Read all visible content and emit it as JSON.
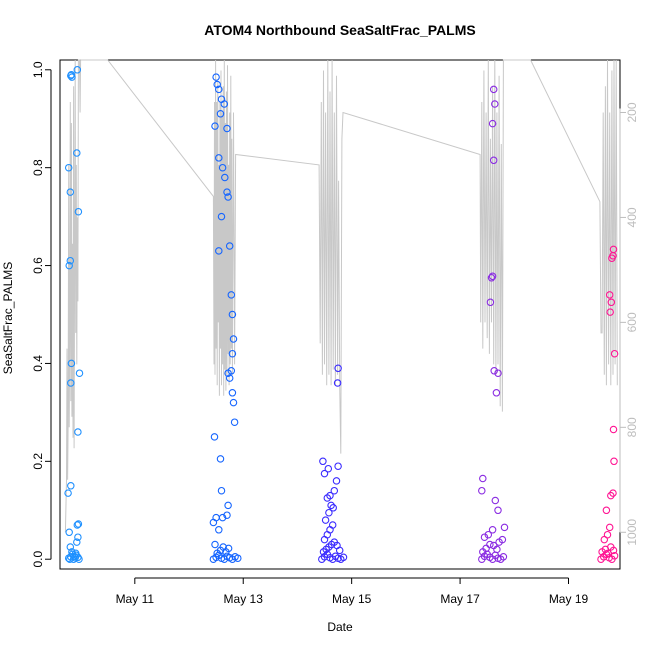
{
  "chart_data": {
    "type": "scatter",
    "title": "ATOM4 Northbound SeaSaltFrac_PALMS",
    "xlabel": "Date",
    "ylabel": "SeaSaltFrac_PALMS",
    "xlim_days": [
      9.62,
      19.95
    ],
    "ylim": [
      -0.02,
      1.02
    ],
    "yticks": [
      0.0,
      0.2,
      0.4,
      0.6,
      0.8,
      1.0
    ],
    "ytick_labels": [
      "0.0",
      "0.2",
      "0.4",
      "0.6",
      "0.8",
      "1.0"
    ],
    "xticks": [
      11,
      13,
      15,
      17,
      19
    ],
    "xtick_labels": [
      "May 11",
      "May 13",
      "May 15",
      "May 17",
      "May 19"
    ],
    "y2_axis": {
      "reversed": true,
      "lim": [
        1070,
        100
      ],
      "ticks": [
        200,
        400,
        600,
        800,
        1000
      ],
      "tick_labels": [
        "200",
        "400",
        "600",
        "800",
        "1000"
      ],
      "color": "#bdbdbd"
    },
    "grid": false,
    "series": [
      {
        "color": "#1e90ff",
        "points": [
          [
            9.8,
            0.0
          ],
          [
            9.82,
            0.005
          ],
          [
            9.85,
            0.01
          ],
          [
            9.87,
            0.0
          ],
          [
            9.9,
            0.003
          ],
          [
            9.92,
            0.008
          ],
          [
            9.78,
            0.002
          ],
          [
            9.84,
            0.015
          ],
          [
            9.88,
            0.006
          ],
          [
            9.95,
            0.004
          ],
          [
            9.97,
            0.0
          ],
          [
            9.81,
            0.025
          ],
          [
            9.79,
            0.055
          ],
          [
            9.77,
            0.135
          ],
          [
            9.82,
            0.15
          ],
          [
            9.94,
            0.07
          ],
          [
            9.96,
            0.072
          ],
          [
            9.93,
            0.035
          ],
          [
            9.95,
            0.045
          ],
          [
            9.91,
            0.012
          ],
          [
            9.83,
            0.99
          ],
          [
            9.84,
            0.985
          ],
          [
            9.82,
            0.988
          ],
          [
            9.94,
            1.0
          ],
          [
            9.93,
            0.83
          ],
          [
            9.78,
            0.8
          ],
          [
            9.81,
            0.75
          ],
          [
            9.96,
            0.71
          ],
          [
            9.81,
            0.61
          ],
          [
            9.79,
            0.6
          ],
          [
            9.83,
            0.4
          ],
          [
            9.98,
            0.38
          ],
          [
            9.82,
            0.36
          ],
          [
            9.95,
            0.26
          ]
        ]
      },
      {
        "color": "#1565ff",
        "points": [
          [
            12.45,
            0.0
          ],
          [
            12.5,
            0.004
          ],
          [
            12.55,
            0.008
          ],
          [
            12.6,
            0.002
          ],
          [
            12.65,
            0.0
          ],
          [
            12.7,
            0.006
          ],
          [
            12.75,
            0.003
          ],
          [
            12.8,
            0.0
          ],
          [
            12.85,
            0.005
          ],
          [
            12.9,
            0.002
          ],
          [
            12.52,
            0.012
          ],
          [
            12.58,
            0.018
          ],
          [
            12.63,
            0.025
          ],
          [
            12.68,
            0.015
          ],
          [
            12.73,
            0.022
          ],
          [
            12.48,
            0.03
          ],
          [
            12.55,
            0.06
          ],
          [
            12.62,
            0.085
          ],
          [
            12.7,
            0.09
          ],
          [
            12.45,
            0.075
          ],
          [
            12.5,
            0.085
          ],
          [
            12.6,
            0.14
          ],
          [
            12.58,
            0.205
          ],
          [
            12.47,
            0.25
          ],
          [
            12.72,
            0.11
          ],
          [
            12.5,
            0.985
          ],
          [
            12.52,
            0.97
          ],
          [
            12.55,
            0.96
          ],
          [
            12.6,
            0.94
          ],
          [
            12.65,
            0.93
          ],
          [
            12.58,
            0.91
          ],
          [
            12.7,
            0.88
          ],
          [
            12.48,
            0.885
          ],
          [
            12.55,
            0.82
          ],
          [
            12.62,
            0.8
          ],
          [
            12.66,
            0.78
          ],
          [
            12.7,
            0.75
          ],
          [
            12.72,
            0.74
          ],
          [
            12.6,
            0.7
          ],
          [
            12.75,
            0.64
          ],
          [
            12.55,
            0.63
          ],
          [
            12.78,
            0.54
          ],
          [
            12.8,
            0.5
          ],
          [
            12.82,
            0.45
          ],
          [
            12.8,
            0.42
          ],
          [
            12.78,
            0.385
          ],
          [
            12.72,
            0.38
          ],
          [
            12.75,
            0.37
          ],
          [
            12.8,
            0.34
          ],
          [
            12.82,
            0.32
          ],
          [
            12.84,
            0.28
          ]
        ]
      },
      {
        "color": "#3a2bff",
        "points": [
          [
            14.45,
            0.0
          ],
          [
            14.5,
            0.005
          ],
          [
            14.55,
            0.01
          ],
          [
            14.6,
            0.003
          ],
          [
            14.65,
            0.0
          ],
          [
            14.7,
            0.006
          ],
          [
            14.75,
            0.002
          ],
          [
            14.8,
            0.0
          ],
          [
            14.85,
            0.004
          ],
          [
            14.48,
            0.015
          ],
          [
            14.53,
            0.02
          ],
          [
            14.58,
            0.025
          ],
          [
            14.63,
            0.03
          ],
          [
            14.68,
            0.035
          ],
          [
            14.73,
            0.028
          ],
          [
            14.78,
            0.018
          ],
          [
            14.5,
            0.04
          ],
          [
            14.55,
            0.05
          ],
          [
            14.6,
            0.06
          ],
          [
            14.65,
            0.07
          ],
          [
            14.52,
            0.08
          ],
          [
            14.58,
            0.095
          ],
          [
            14.62,
            0.11
          ],
          [
            14.55,
            0.125
          ],
          [
            14.6,
            0.13
          ],
          [
            14.68,
            0.14
          ],
          [
            14.72,
            0.16
          ],
          [
            14.5,
            0.175
          ],
          [
            14.57,
            0.185
          ],
          [
            14.75,
            0.19
          ],
          [
            14.47,
            0.2
          ],
          [
            14.66,
            0.105
          ],
          [
            14.75,
            0.39
          ],
          [
            14.74,
            0.36
          ]
        ]
      },
      {
        "color": "#8a2be2",
        "points": [
          [
            17.4,
            0.0
          ],
          [
            17.45,
            0.006
          ],
          [
            17.5,
            0.01
          ],
          [
            17.55,
            0.004
          ],
          [
            17.6,
            0.0
          ],
          [
            17.65,
            0.008
          ],
          [
            17.7,
            0.002
          ],
          [
            17.75,
            0.0
          ],
          [
            17.8,
            0.005
          ],
          [
            17.42,
            0.015
          ],
          [
            17.48,
            0.022
          ],
          [
            17.55,
            0.03
          ],
          [
            17.62,
            0.028
          ],
          [
            17.68,
            0.02
          ],
          [
            17.72,
            0.035
          ],
          [
            17.45,
            0.045
          ],
          [
            17.52,
            0.05
          ],
          [
            17.6,
            0.06
          ],
          [
            17.78,
            0.04
          ],
          [
            17.82,
            0.065
          ],
          [
            17.4,
            0.14
          ],
          [
            17.42,
            0.165
          ],
          [
            17.65,
            0.12
          ],
          [
            17.7,
            0.1
          ],
          [
            17.62,
            0.96
          ],
          [
            17.64,
            0.93
          ],
          [
            17.6,
            0.89
          ],
          [
            17.62,
            0.815
          ],
          [
            17.58,
            0.575
          ],
          [
            17.6,
            0.578
          ],
          [
            17.56,
            0.525
          ],
          [
            17.63,
            0.385
          ],
          [
            17.7,
            0.38
          ],
          [
            17.67,
            0.34
          ]
        ]
      },
      {
        "color": "#ff1493",
        "points": [
          [
            19.6,
            0.0
          ],
          [
            19.65,
            0.005
          ],
          [
            19.7,
            0.01
          ],
          [
            19.75,
            0.003
          ],
          [
            19.8,
            0.0
          ],
          [
            19.85,
            0.007
          ],
          [
            19.62,
            0.015
          ],
          [
            19.68,
            0.02
          ],
          [
            19.73,
            0.012
          ],
          [
            19.78,
            0.025
          ],
          [
            19.83,
            0.018
          ],
          [
            19.66,
            0.04
          ],
          [
            19.72,
            0.05
          ],
          [
            19.76,
            0.065
          ],
          [
            19.7,
            0.1
          ],
          [
            19.78,
            0.13
          ],
          [
            19.82,
            0.135
          ],
          [
            19.84,
            0.2
          ],
          [
            19.83,
            0.265
          ],
          [
            19.85,
            0.42
          ],
          [
            19.76,
            0.54
          ],
          [
            19.77,
            0.505
          ],
          [
            19.79,
            0.525
          ],
          [
            19.8,
            0.615
          ],
          [
            19.82,
            0.62
          ],
          [
            19.83,
            0.633
          ]
        ]
      }
    ],
    "pressure_line": [
      [
        9.72,
        1000
      ],
      [
        9.74,
        900
      ],
      [
        9.75,
        650
      ],
      [
        9.76,
        900
      ],
      [
        9.77,
        800
      ],
      [
        9.78,
        300
      ],
      [
        9.79,
        800
      ],
      [
        9.8,
        600
      ],
      [
        9.81,
        180
      ],
      [
        9.82,
        750
      ],
      [
        9.83,
        220
      ],
      [
        9.84,
        780
      ],
      [
        9.85,
        450
      ],
      [
        9.86,
        820
      ],
      [
        9.87,
        150
      ],
      [
        9.88,
        840
      ],
      [
        9.89,
        500
      ],
      [
        9.9,
        100
      ],
      [
        9.91,
        620
      ],
      [
        9.92,
        300
      ],
      [
        9.93,
        680
      ],
      [
        9.94,
        400
      ],
      [
        9.95,
        560
      ],
      [
        9.96,
        100
      ],
      [
        9.98,
        100
      ],
      [
        9.99,
        200
      ],
      [
        10.0,
        100
      ],
      [
        10.5,
        100
      ],
      [
        12.45,
        360
      ],
      [
        12.46,
        680
      ],
      [
        12.47,
        180
      ],
      [
        12.48,
        700
      ],
      [
        12.49,
        100
      ],
      [
        12.5,
        650
      ],
      [
        12.51,
        180
      ],
      [
        12.52,
        720
      ],
      [
        12.53,
        140
      ],
      [
        12.54,
        600
      ],
      [
        12.55,
        300
      ],
      [
        12.56,
        740
      ],
      [
        12.57,
        180
      ],
      [
        12.58,
        650
      ],
      [
        12.59,
        120
      ],
      [
        12.6,
        720
      ],
      [
        12.61,
        200
      ],
      [
        12.62,
        680
      ],
      [
        12.63,
        150
      ],
      [
        12.64,
        740
      ],
      [
        12.65,
        100
      ],
      [
        12.66,
        690
      ],
      [
        12.67,
        220
      ],
      [
        12.68,
        730
      ],
      [
        12.69,
        160
      ],
      [
        12.7,
        700
      ],
      [
        12.71,
        110
      ],
      [
        12.72,
        660
      ],
      [
        12.73,
        300
      ],
      [
        12.74,
        720
      ],
      [
        12.75,
        200
      ],
      [
        12.76,
        680
      ],
      [
        12.77,
        130
      ],
      [
        12.78,
        650
      ],
      [
        12.79,
        250
      ],
      [
        12.8,
        700
      ],
      [
        12.82,
        200
      ],
      [
        12.84,
        680
      ],
      [
        12.86,
        280
      ],
      [
        14.4,
        300
      ],
      [
        14.42,
        640
      ],
      [
        14.44,
        180
      ],
      [
        14.46,
        700
      ],
      [
        14.48,
        120
      ],
      [
        14.5,
        680
      ],
      [
        14.52,
        200
      ],
      [
        14.54,
        720
      ],
      [
        14.56,
        100
      ],
      [
        14.58,
        700
      ],
      [
        14.6,
        160
      ],
      [
        14.62,
        720
      ],
      [
        14.64,
        100
      ],
      [
        14.66,
        690
      ],
      [
        14.68,
        200
      ],
      [
        14.7,
        720
      ],
      [
        14.72,
        130
      ],
      [
        14.74,
        700
      ],
      [
        14.76,
        330
      ],
      [
        14.78,
        720
      ],
      [
        14.8,
        850
      ],
      [
        14.82,
        250
      ],
      [
        14.84,
        200
      ],
      [
        17.37,
        280
      ],
      [
        17.38,
        600
      ],
      [
        17.4,
        180
      ],
      [
        17.42,
        650
      ],
      [
        17.44,
        120
      ],
      [
        17.46,
        600
      ],
      [
        17.48,
        200
      ],
      [
        17.5,
        630
      ],
      [
        17.52,
        100
      ],
      [
        17.54,
        660
      ],
      [
        17.56,
        250
      ],
      [
        17.58,
        600
      ],
      [
        17.6,
        150
      ],
      [
        17.62,
        680
      ],
      [
        17.64,
        100
      ],
      [
        17.66,
        700
      ],
      [
        17.68,
        200
      ],
      [
        17.7,
        680
      ],
      [
        17.72,
        130
      ],
      [
        17.74,
        760
      ],
      [
        17.76,
        260
      ],
      [
        17.78,
        770
      ],
      [
        17.8,
        100
      ],
      [
        18.3,
        100
      ],
      [
        19.58,
        370
      ],
      [
        19.6,
        620
      ],
      [
        19.62,
        620
      ],
      [
        19.64,
        200
      ],
      [
        19.66,
        700
      ],
      [
        19.68,
        150
      ],
      [
        19.7,
        720
      ],
      [
        19.72,
        100
      ],
      [
        19.74,
        680
      ],
      [
        19.76,
        200
      ],
      [
        19.78,
        720
      ],
      [
        19.8,
        120
      ],
      [
        19.82,
        700
      ],
      [
        19.84,
        100
      ],
      [
        19.86,
        680
      ],
      [
        19.88,
        100
      ],
      [
        19.9,
        720
      ]
    ]
  }
}
